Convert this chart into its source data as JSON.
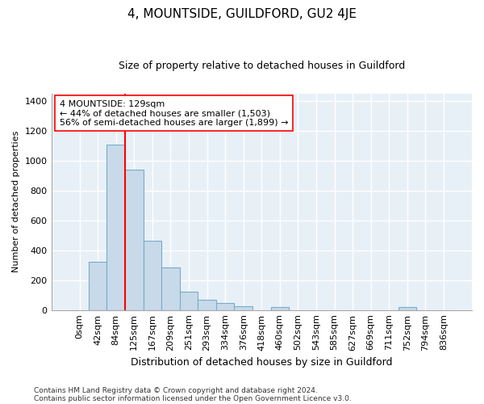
{
  "title": "4, MOUNTSIDE, GUILDFORD, GU2 4JE",
  "subtitle": "Size of property relative to detached houses in Guildford",
  "xlabel": "Distribution of detached houses by size in Guildford",
  "ylabel": "Number of detached properties",
  "footnote1": "Contains HM Land Registry data © Crown copyright and database right 2024.",
  "footnote2": "Contains public sector information licensed under the Open Government Licence v3.0.",
  "annotation_line1": "4 MOUNTSIDE: 129sqm",
  "annotation_line2": "← 44% of detached houses are smaller (1,503)",
  "annotation_line3": "56% of semi-detached houses are larger (1,899) →",
  "bar_color": "#c8daea",
  "bar_edge_color": "#7aaac8",
  "grid_color": "#c8daea",
  "vline_color": "red",
  "bins": [
    "0sqm",
    "42sqm",
    "84sqm",
    "125sqm",
    "167sqm",
    "209sqm",
    "251sqm",
    "293sqm",
    "334sqm",
    "376sqm",
    "418sqm",
    "460sqm",
    "502sqm",
    "543sqm",
    "585sqm",
    "627sqm",
    "669sqm",
    "711sqm",
    "752sqm",
    "794sqm",
    "836sqm"
  ],
  "values": [
    0,
    322,
    1107,
    940,
    462,
    283,
    120,
    70,
    45,
    25,
    0,
    20,
    0,
    0,
    0,
    0,
    0,
    0,
    20,
    0,
    0
  ],
  "vline_bin_index": 3,
  "ylim": [
    0,
    1450
  ],
  "yticks": [
    0,
    200,
    400,
    600,
    800,
    1000,
    1200,
    1400
  ],
  "background_color": "#e8f0f7",
  "title_fontsize": 11,
  "subtitle_fontsize": 9,
  "ylabel_fontsize": 8,
  "xlabel_fontsize": 9,
  "tick_fontsize": 8,
  "xtick_fontsize": 8,
  "annotation_fontsize": 8,
  "footnote_fontsize": 6.5
}
